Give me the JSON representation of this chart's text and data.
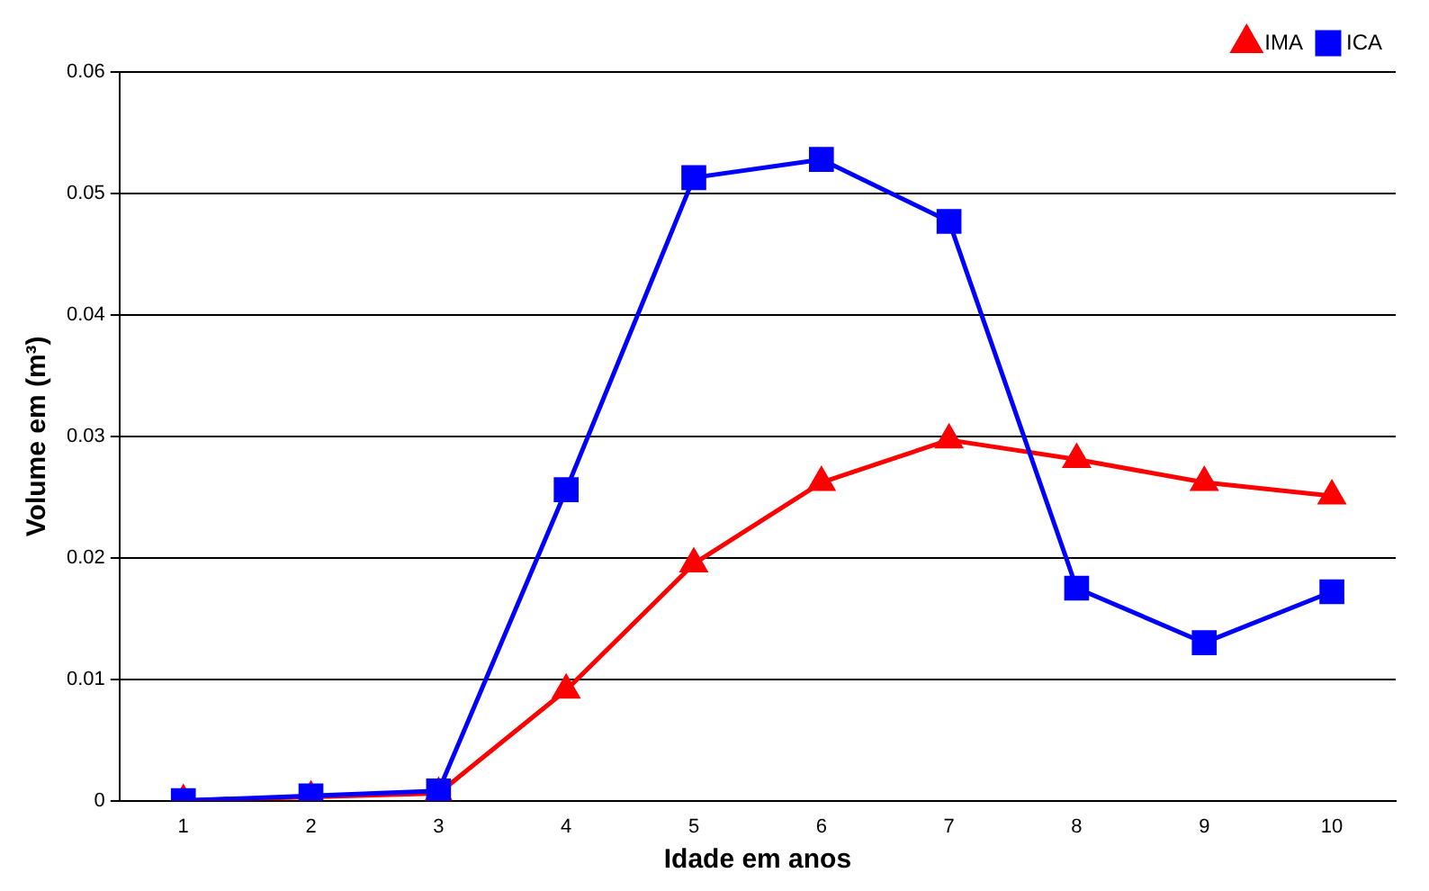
{
  "chart_data": {
    "type": "line",
    "xlabel": "Idade em anos",
    "ylabel": "Volume em (m³)",
    "categories": [
      "1",
      "2",
      "3",
      "4",
      "5",
      "6",
      "7",
      "8",
      "9",
      "10"
    ],
    "series": [
      {
        "name": "IMA",
        "color": "#ff0000",
        "marker": "triangle",
        "values": [
          0,
          0.0003,
          0.0006,
          0.0091,
          0.0195,
          0.0262,
          0.0297,
          0.0281,
          0.0262,
          0.0251
        ]
      },
      {
        "name": "ICA",
        "color": "#0000ff",
        "marker": "square",
        "values": [
          0,
          0.0004,
          0.0008,
          0.0256,
          0.0513,
          0.0528,
          0.0477,
          0.0175,
          0.013,
          0.0172
        ]
      }
    ],
    "ylim": [
      0,
      0.06
    ],
    "yticks": [
      0,
      0.01,
      0.02,
      0.03,
      0.04,
      0.05,
      0.06
    ],
    "grid": "y",
    "legend": "top right"
  }
}
